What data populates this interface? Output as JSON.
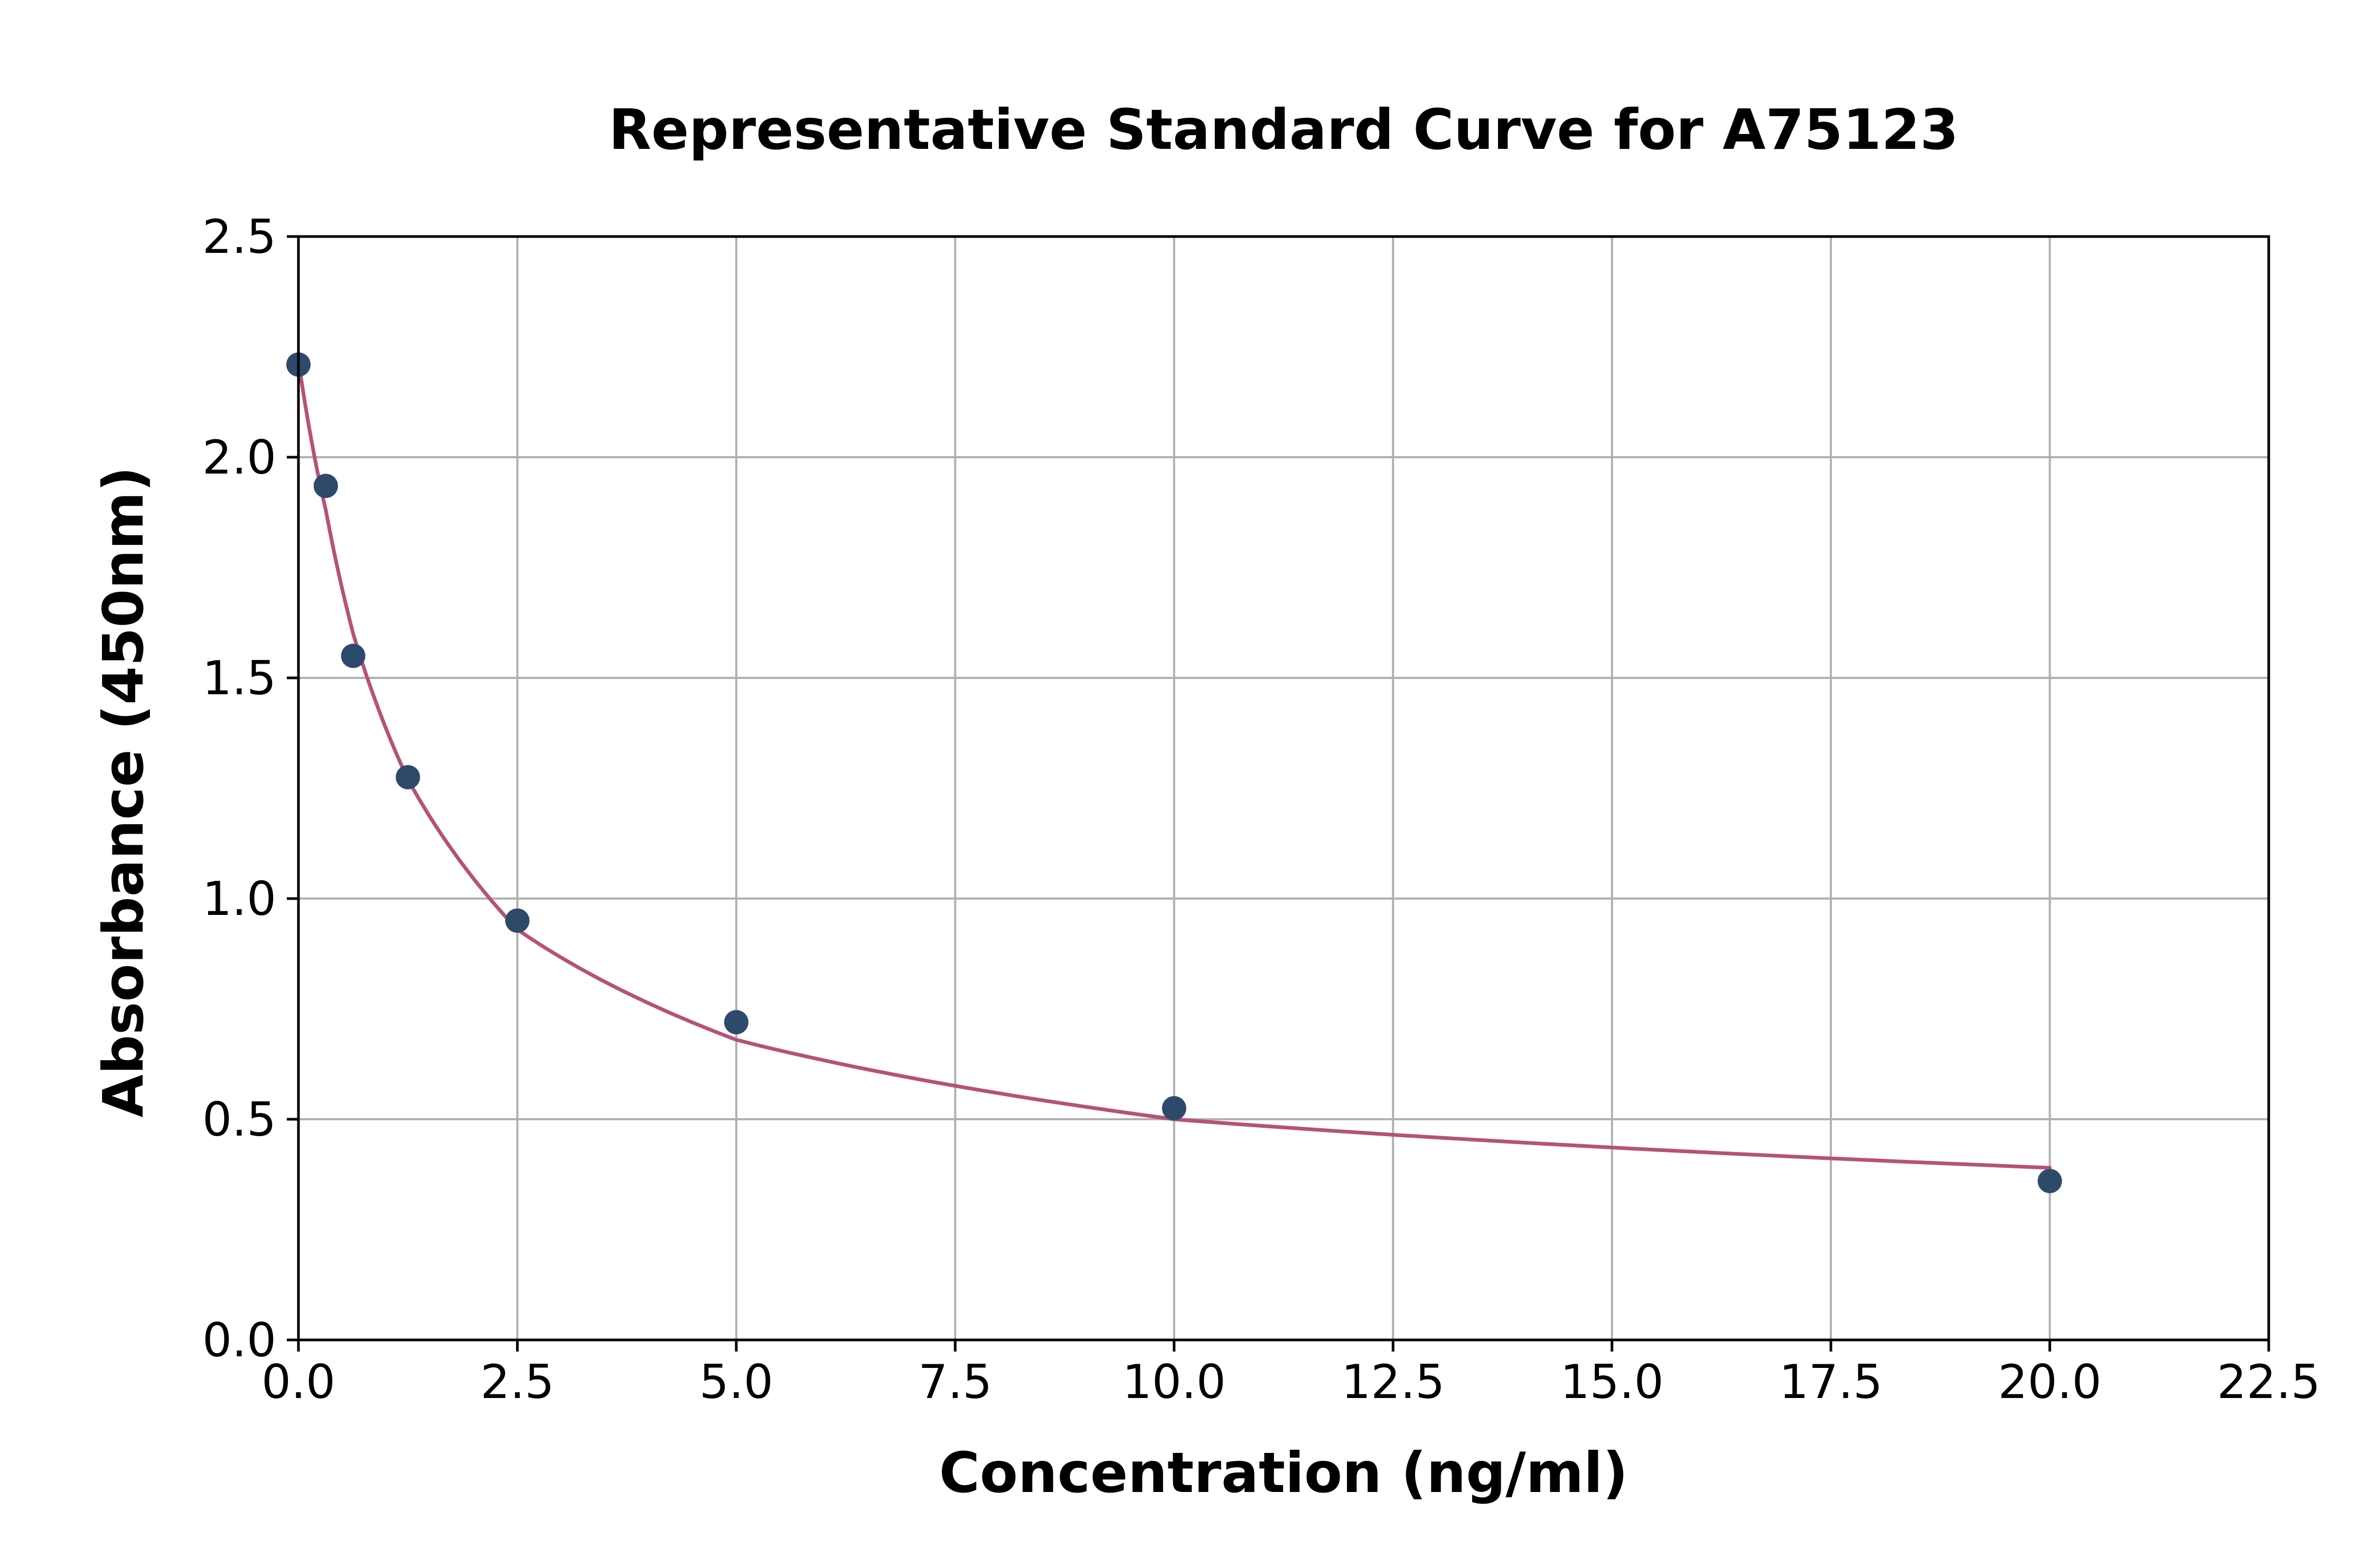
{
  "chart_data": {
    "type": "scatter",
    "title": "Representative Standard Curve for A75123",
    "xlabel": "Concentration (ng/ml)",
    "ylabel": "Absorbance (450nm)",
    "xlim": [
      0,
      22.5
    ],
    "ylim": [
      0,
      2.5
    ],
    "x_ticks": [
      "0.0",
      "2.5",
      "5.0",
      "7.5",
      "10.0",
      "12.5",
      "15.0",
      "17.5",
      "20.0",
      "22.5"
    ],
    "y_ticks": [
      "0.0",
      "0.5",
      "1.0",
      "1.5",
      "2.0",
      "2.5"
    ],
    "grid": true,
    "series": [
      {
        "type": "scatter",
        "x": [
          0,
          0.3125,
          0.625,
          1.25,
          2.5,
          5,
          10,
          20
        ],
        "y": [
          2.21,
          1.935,
          1.55,
          1.275,
          0.95,
          0.72,
          0.525,
          0.36
        ],
        "color": "#2e4a6b"
      },
      {
        "type": "line",
        "x": [
          0,
          0.3125,
          0.625,
          1.25,
          2.5,
          5,
          10,
          20
        ],
        "y": [
          2.22,
          1.88,
          1.6,
          1.27,
          0.93,
          0.68,
          0.5,
          0.39
        ],
        "color": "#b55277"
      }
    ]
  }
}
